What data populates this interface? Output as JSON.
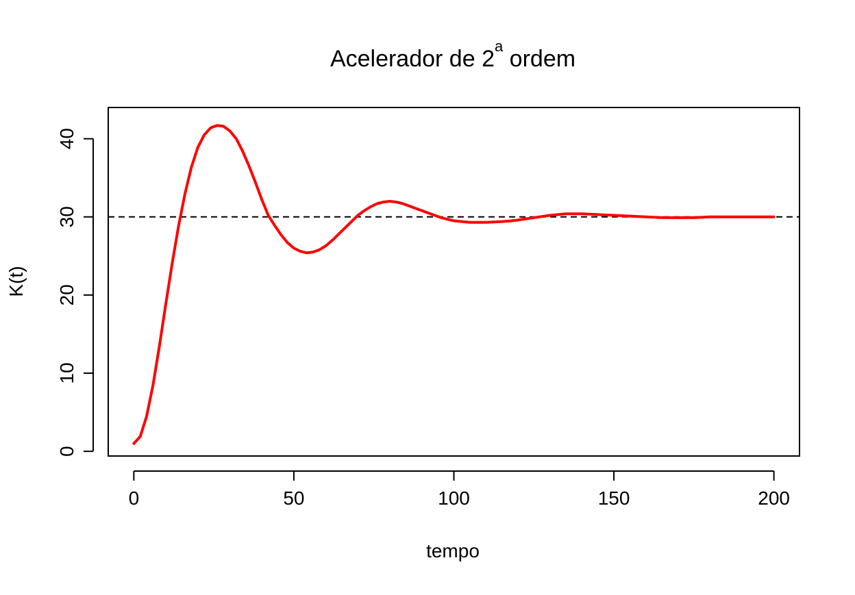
{
  "chart_data": {
    "type": "line",
    "title": "Acelerador de 2",
    "title_superscript": "a",
    "title_suffix": " ordem",
    "xlabel": "tempo",
    "ylabel": "K(t)",
    "xlim": [
      -8,
      208
    ],
    "ylim": [
      -0.6,
      44.0
    ],
    "xticks": [
      0,
      50,
      100,
      150,
      200
    ],
    "yticks": [
      0,
      10,
      20,
      30,
      40
    ],
    "grid": false,
    "legend": "none",
    "reference_line": {
      "y": 30,
      "style": "dashed",
      "color": "#000000"
    },
    "series": [
      {
        "color": "#ff0000",
        "x": [
          0,
          2,
          4,
          6,
          8,
          10,
          12,
          14,
          16,
          18,
          20,
          22,
          24,
          26,
          28,
          30,
          32,
          34,
          36,
          38,
          40,
          42,
          44,
          46,
          48,
          50,
          52,
          54,
          56,
          58,
          60,
          62,
          64,
          66,
          68,
          70,
          72,
          74,
          76,
          78,
          80,
          82,
          84,
          86,
          88,
          90,
          92,
          94,
          96,
          98,
          100,
          105,
          110,
          115,
          118,
          120,
          125,
          130,
          135,
          140,
          145,
          150,
          155,
          160,
          165,
          170,
          175,
          180,
          185,
          190,
          195,
          200
        ],
        "y": [
          1.0,
          1.9,
          4.5,
          8.5,
          13.5,
          18.9,
          24.1,
          28.9,
          33.0,
          36.4,
          38.9,
          40.5,
          41.4,
          41.7,
          41.6,
          41.0,
          40.0,
          38.4,
          36.5,
          34.4,
          32.2,
          30.2,
          28.9,
          27.7,
          26.7,
          26.0,
          25.6,
          25.4,
          25.5,
          25.8,
          26.3,
          27.0,
          27.8,
          28.6,
          29.4,
          30.2,
          30.8,
          31.3,
          31.7,
          31.9,
          32.0,
          31.9,
          31.7,
          31.4,
          31.1,
          30.8,
          30.5,
          30.2,
          29.9,
          29.7,
          29.5,
          29.3,
          29.3,
          29.4,
          29.5,
          29.6,
          29.9,
          30.2,
          30.4,
          30.4,
          30.3,
          30.2,
          30.1,
          30.0,
          29.9,
          29.9,
          29.9,
          30.0,
          30.0,
          30.0,
          30.0,
          30.0
        ]
      }
    ]
  }
}
